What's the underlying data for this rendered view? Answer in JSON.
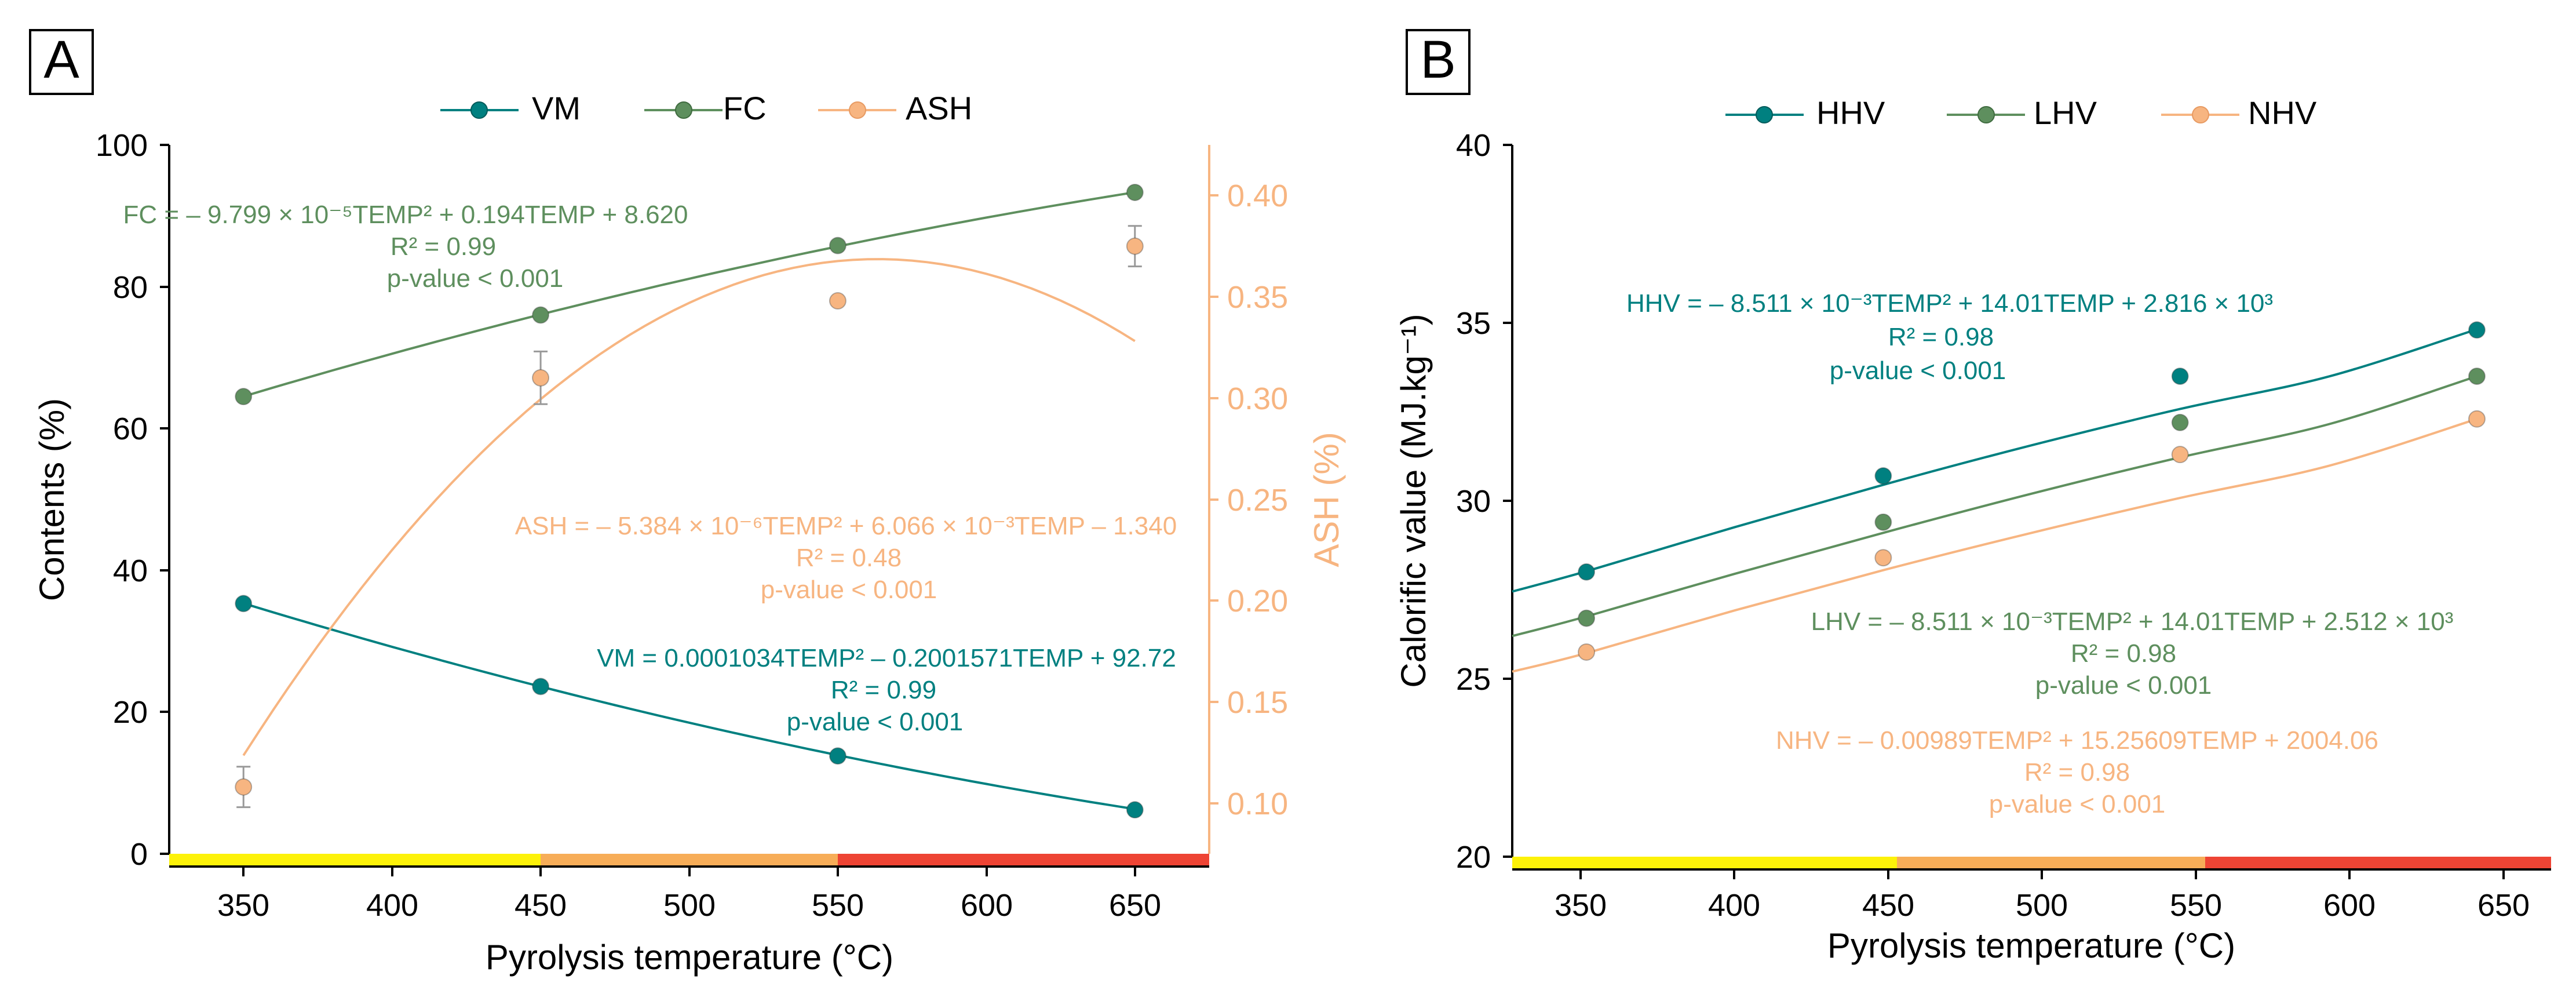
{
  "colors": {
    "vm": "#008080",
    "fc": "#5e8f5e",
    "ash": "#f7b581",
    "hhv": "#008080",
    "lhv": "#5e8f5e",
    "nhv": "#f7b581",
    "axis": "#000000",
    "strip_yellow": "#fdf209",
    "strip_orange": "#f7ad58",
    "strip_red": "#ee4434"
  },
  "chart_data": [
    {
      "panel_label": "A",
      "type": "line",
      "x": [
        350,
        450,
        550,
        650
      ],
      "xlabel": "Pyrolysis temperature (°C)",
      "ylabel": "Contents (%)",
      "ylabel_right": "ASH (%)",
      "xlim": [
        325,
        675
      ],
      "ylim": [
        0,
        100
      ],
      "ylim_right": [
        0.075,
        0.425
      ],
      "x_ticks": [
        "350",
        "400",
        "450",
        "500",
        "550",
        "600",
        "650"
      ],
      "y_ticks": [
        "0",
        "20",
        "40",
        "60",
        "80",
        "100"
      ],
      "y_ticks_right": [
        "0.10",
        "0.15",
        "0.20",
        "0.25",
        "0.30",
        "0.35",
        "0.40"
      ],
      "temperature_strip": [
        {
          "from": 325,
          "to": 450,
          "color": "yellow"
        },
        {
          "from": 450,
          "to": 550,
          "color": "orange"
        },
        {
          "from": 550,
          "to": 675,
          "color": "red"
        }
      ],
      "legend": [
        "VM",
        "FC",
        "ASH"
      ],
      "series": [
        {
          "name": "VM",
          "axis": "left",
          "values": [
            35.3,
            23.6,
            13.8,
            6.2
          ],
          "fit": {
            "a": 0.0001034,
            "b": -0.2001571,
            "c": 92.72
          },
          "annotation": [
            "VM = 0.0001034TEMP² – 0.2001571TEMP + 92.72",
            "R² = 0.99",
            "p-value < 0.001"
          ]
        },
        {
          "name": "FC",
          "axis": "left",
          "values": [
            64.5,
            76.0,
            85.8,
            93.3
          ],
          "fit": {
            "a": -9.799e-05,
            "b": 0.194,
            "c": 8.62
          },
          "annotation": [
            "FC = – 9.799 × 10⁻⁵TEMP² + 0.194TEMP + 8.620",
            "R² = 0.99",
            "p-value < 0.001"
          ]
        },
        {
          "name": "ASH",
          "axis": "right",
          "values": [
            0.108,
            0.31,
            0.348,
            0.375
          ],
          "errors": [
            0.01,
            0.013,
            0.0,
            0.01
          ],
          "fit": {
            "a": -5.384e-06,
            "b": 0.006066,
            "c": -1.34
          },
          "annotation": [
            "ASH = – 5.384 × 10⁻⁶TEMP² + 6.066 × 10⁻³TEMP – 1.340",
            "R² = 0.48",
            "p-value < 0.001"
          ]
        }
      ]
    },
    {
      "panel_label": "B",
      "type": "line",
      "x": [
        350,
        450,
        550,
        650
      ],
      "xlabel": "Pyrolysis temperature (°C)",
      "ylabel": "Calorific value (MJ.kg⁻¹)",
      "xlim": [
        325,
        675
      ],
      "ylim": [
        20,
        40
      ],
      "x_ticks": [
        "350",
        "400",
        "450",
        "500",
        "550",
        "600",
        "650"
      ],
      "y_ticks": [
        "20",
        "25",
        "30",
        "35",
        "40"
      ],
      "temperature_strip": [
        {
          "from": 325,
          "to": 450,
          "color": "yellow"
        },
        {
          "from": 450,
          "to": 550,
          "color": "orange"
        },
        {
          "from": 550,
          "to": 675,
          "color": "red"
        }
      ],
      "legend": [
        "HHV",
        "LHV",
        "NHV"
      ],
      "series": [
        {
          "name": "HHV",
          "values": [
            28.0,
            30.7,
            33.5,
            34.8
          ],
          "fit": [
            [
              325,
              27.45
            ],
            [
              350,
              28.02
            ],
            [
              400,
              29.26
            ],
            [
              450,
              30.45
            ],
            [
              500,
              31.56
            ],
            [
              550,
              32.58
            ],
            [
              600,
              33.49
            ],
            [
              650,
              34.82
            ]
          ],
          "annotation": [
            "HHV =  – 8.511 × 10⁻³TEMP² + 14.01TEMP + 2.816 × 10³",
            "R² = 0.98",
            "p-value < 0.001"
          ]
        },
        {
          "name": "LHV",
          "values": [
            26.7,
            29.4,
            32.2,
            33.5
          ],
          "fit": [
            [
              325,
              26.2
            ],
            [
              350,
              26.75
            ],
            [
              400,
              27.95
            ],
            [
              450,
              29.1
            ],
            [
              500,
              30.2
            ],
            [
              550,
              31.22
            ],
            [
              600,
              32.15
            ],
            [
              650,
              33.5
            ]
          ],
          "annotation": [
            "LHV = – 8.511 × 10⁻³TEMP² + 14.01TEMP + 2.512 × 10³",
            "R² = 0.98",
            "p-value < 0.001"
          ]
        },
        {
          "name": "NHV",
          "values": [
            25.75,
            28.4,
            31.3,
            32.3
          ],
          "fit": [
            [
              325,
              25.2
            ],
            [
              350,
              25.72
            ],
            [
              400,
              26.92
            ],
            [
              450,
              28.05
            ],
            [
              500,
              29.1
            ],
            [
              550,
              30.08
            ],
            [
              600,
              30.98
            ],
            [
              650,
              32.3
            ]
          ],
          "annotation": [
            "NHV = – 0.00989TEMP² + 15.25609TEMP + 2004.06",
            "R² = 0.98",
            "p-value < 0.001"
          ]
        }
      ]
    }
  ]
}
